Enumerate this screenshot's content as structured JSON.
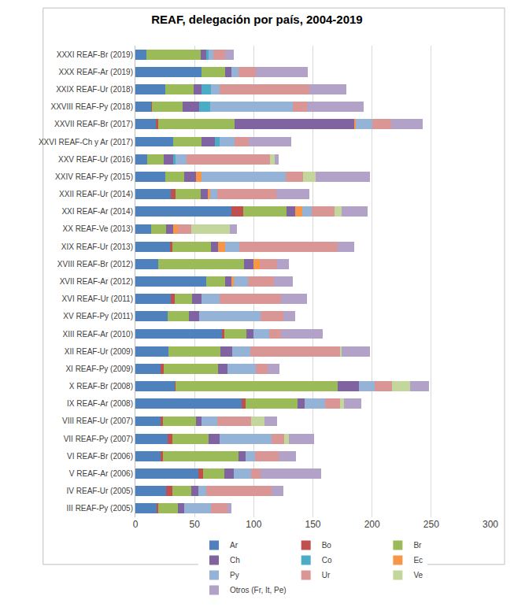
{
  "chart_data": {
    "type": "bar",
    "title": "REAF, delegación por país, 2004-2019",
    "orientation": "horizontal",
    "stacked": true,
    "grid": true,
    "legend": "bottom",
    "xlim": [
      0,
      300
    ],
    "xticks": [
      0,
      50,
      100,
      150,
      200,
      250,
      300
    ],
    "categories": [
      "XXXI REAF-Br (2019)",
      "XXX REAF-Ar (2019)",
      "XXIX REAF-Ur (2018)",
      "XXVIII REAF-Py (2018)",
      "XXVII REAF-Br (2017)",
      "XXVI REAF-Ch y Ar (2017)",
      "XXV REAF-Ur (2016)",
      "XXIV REAF-Py (2015)",
      "XXII REAF-Ur (2014)",
      "XXI REAF-Ar (2014)",
      "XX REAF-Ve (2013)",
      "XIX REAF-Ur (2013)",
      "XVIII REAF-Br (2012)",
      "XVII REAF-Ar (2012)",
      "XVI REAF-Ur (2011)",
      "XV REAF-Py (2011)",
      "XIII REAF-Ar (2010)",
      "XII REAF-Ur (2009)",
      "XI REAF-Py (2009)",
      "X REAF-Br (2008)",
      "IX REAF-Ar (2008)",
      "VIII REAF-Ur (2007)",
      "VII REAF-Py (2007)",
      "VI REAF-Br (2006)",
      "V REAF-Ar (2006)",
      "IV REAF-Ur (2005)",
      "III REAF-Py (2005)"
    ],
    "series": [
      {
        "name": "Ar",
        "color": "#4f81bd",
        "values": [
          9,
          56,
          25,
          13,
          17,
          32,
          10,
          25,
          30,
          81,
          13,
          29,
          19,
          60,
          30,
          27,
          73,
          28,
          21,
          33,
          90,
          21,
          27,
          21,
          53,
          26,
          18
        ]
      },
      {
        "name": "Bo",
        "color": "#c0504d",
        "values": [
          0,
          0,
          0,
          1,
          2,
          0,
          0,
          0,
          4,
          10,
          0,
          2,
          0,
          0,
          3,
          0,
          2,
          0,
          3,
          1,
          3,
          2,
          4,
          2,
          4,
          5,
          1
        ]
      },
      {
        "name": "Br",
        "color": "#9bbb59",
        "values": [
          46,
          20,
          24,
          26,
          65,
          24,
          14,
          16,
          21,
          37,
          13,
          33,
          73,
          16,
          15,
          18,
          19,
          44,
          46,
          137,
          44,
          28,
          31,
          64,
          18,
          16,
          17
        ]
      },
      {
        "name": "Ch",
        "color": "#8064a2",
        "values": [
          5,
          5,
          7,
          14,
          101,
          11,
          8,
          10,
          6,
          7,
          6,
          6,
          8,
          5,
          8,
          9,
          6,
          10,
          8,
          18,
          6,
          5,
          9,
          6,
          8,
          6,
          5
        ]
      },
      {
        "name": "Co",
        "color": "#4bacc6",
        "values": [
          2,
          0,
          8,
          9,
          0,
          4,
          2,
          0,
          0,
          0,
          0,
          0,
          0,
          0,
          0,
          0,
          0,
          0,
          0,
          0,
          0,
          0,
          0,
          0,
          0,
          0,
          0
        ]
      },
      {
        "name": "Ec",
        "color": "#f79646",
        "values": [
          0,
          0,
          0,
          0,
          1,
          0,
          0,
          5,
          2,
          6,
          4,
          6,
          5,
          2,
          0,
          0,
          0,
          0,
          0,
          0,
          0,
          0,
          0,
          0,
          0,
          0,
          0
        ]
      },
      {
        "name": "Py",
        "color": "#95b3d7",
        "values": [
          4,
          6,
          7,
          70,
          14,
          13,
          9,
          71,
          6,
          8,
          0,
          12,
          0,
          12,
          15,
          52,
          13,
          15,
          24,
          13,
          17,
          13,
          44,
          8,
          15,
          7,
          23
        ]
      },
      {
        "name": "Ur",
        "color": "#d99694",
        "values": [
          10,
          15,
          76,
          12,
          16,
          12,
          71,
          15,
          50,
          19,
          11,
          83,
          15,
          22,
          52,
          19,
          10,
          76,
          10,
          15,
          13,
          29,
          11,
          20,
          8,
          55,
          14
        ]
      },
      {
        "name": "Ve",
        "color": "#c3d69b",
        "values": [
          0,
          0,
          0,
          0,
          0,
          0,
          4,
          10,
          0,
          6,
          33,
          0,
          0,
          0,
          0,
          0,
          0,
          1,
          0,
          15,
          3,
          11,
          4,
          0,
          0,
          0,
          0
        ]
      },
      {
        "name": "Otros (Fr, It, Pe)",
        "color": "#b3a2c7",
        "values": [
          7,
          44,
          31,
          48,
          27,
          36,
          3,
          46,
          28,
          22,
          6,
          14,
          10,
          16,
          22,
          10,
          35,
          24,
          10,
          16,
          15,
          11,
          21,
          15,
          51,
          10,
          3
        ]
      }
    ]
  }
}
